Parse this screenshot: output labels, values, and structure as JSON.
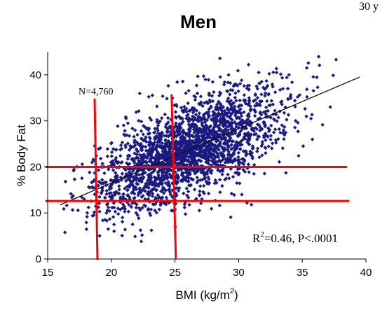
{
  "header": {
    "corner_text": "30 y"
  },
  "chart_data": {
    "type": "scatter",
    "title": "Men",
    "xlabel_main": "BMI (kg/m",
    "xlabel_sup": "2",
    "xlabel_close": ")",
    "ylabel": "% Body Fat",
    "xlim": [
      15,
      40
    ],
    "ylim": [
      0,
      45
    ],
    "xticks": [
      15,
      20,
      25,
      30,
      35,
      40
    ],
    "yticks": [
      0,
      10,
      20,
      30,
      40
    ],
    "grid": false,
    "legend": "none",
    "marker_color": "#1a1a80",
    "fit_line": {
      "slope": 1.18,
      "intercept": -7.1,
      "x_range": [
        16,
        39.5
      ],
      "color": "#111111"
    },
    "reference_lines": {
      "color": "#ff0000",
      "vertical_bmi": [
        18.8,
        24.9
      ],
      "horizontal_fat": [
        20,
        12.6
      ]
    },
    "annotations": {
      "n_label": "N=4,760",
      "r2_prefix": "R",
      "r2_sup": "2",
      "r2_suffix": "=0.46, P<.0001"
    },
    "n_points": 4760,
    "series": [
      {
        "name": "",
        "distribution": "bmi_vs_percent_body_fat_cloud"
      }
    ]
  }
}
